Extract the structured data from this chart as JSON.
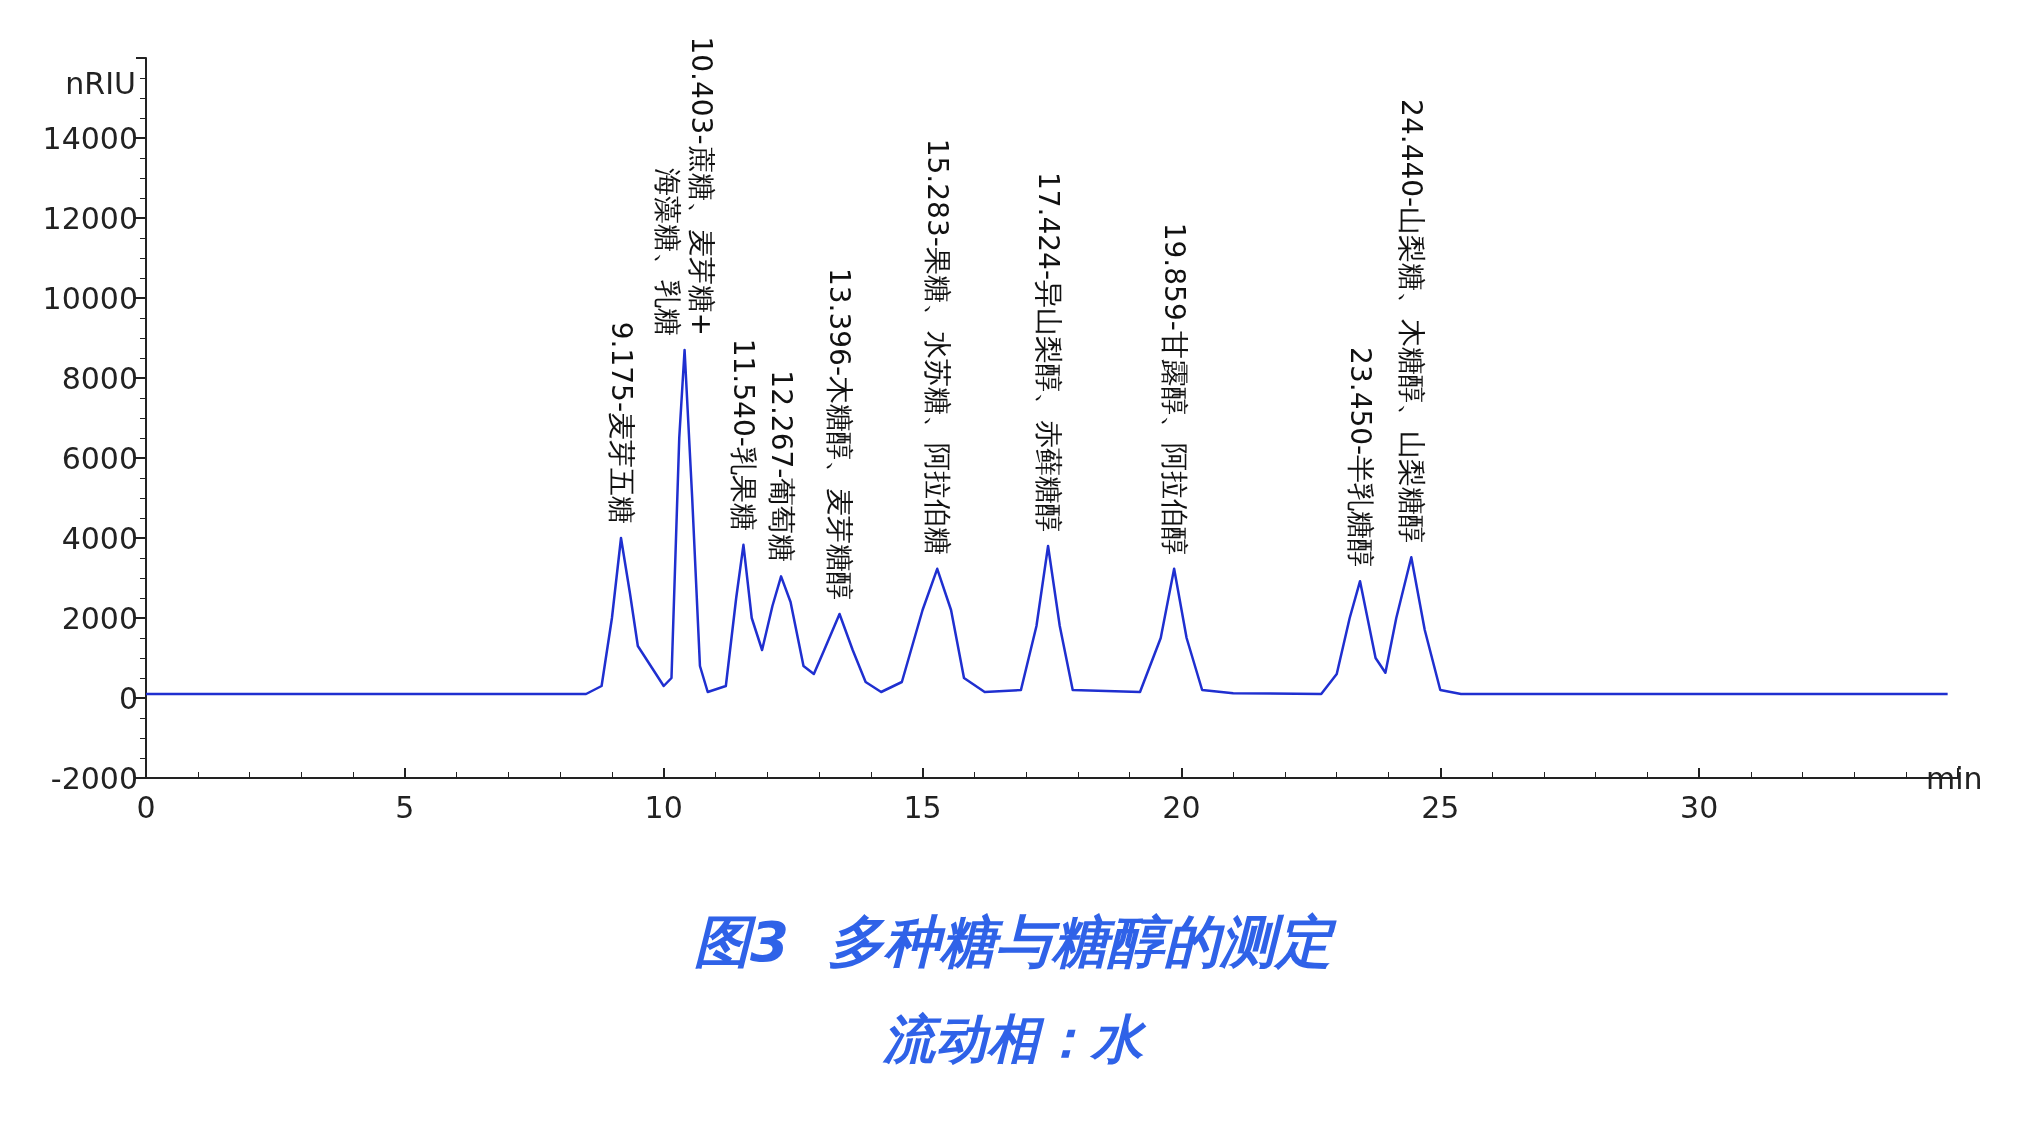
{
  "chart_data": {
    "type": "line",
    "title": "图3  多种糖与糖醇的测定",
    "subtitle": "流动相：水",
    "xlabel": "min",
    "ylabel": "nRIU",
    "x": [
      0,
      8.5,
      8.8,
      9.0,
      9.175,
      9.35,
      9.5,
      9.8,
      10.0,
      10.15,
      10.3,
      10.403,
      10.55,
      10.7,
      10.85,
      11.2,
      11.4,
      11.54,
      11.7,
      11.9,
      12.1,
      12.267,
      12.45,
      12.7,
      12.9,
      13.1,
      13.396,
      13.65,
      13.9,
      14.2,
      14.6,
      15.0,
      15.283,
      15.55,
      15.8,
      16.2,
      16.9,
      17.2,
      17.424,
      17.65,
      17.9,
      19.2,
      19.6,
      19.859,
      20.1,
      20.4,
      21,
      22.7,
      23.0,
      23.25,
      23.45,
      23.75,
      23.94,
      24.15,
      24.44,
      24.7,
      25.0,
      25.4,
      34.8
    ],
    "series": [
      {
        "color": "#1f2fd0",
        "values": [
          100,
          100,
          300,
          2000,
          4000,
          2600,
          1300,
          700,
          300,
          500,
          6500,
          8700,
          5000,
          800,
          150,
          300,
          2500,
          3830,
          2000,
          1200,
          2300,
          3040,
          2400,
          800,
          600,
          1200,
          2100,
          1200,
          400,
          150,
          400,
          2200,
          3230,
          2200,
          500,
          150,
          200,
          1800,
          3800,
          1800,
          200,
          150,
          1500,
          3230,
          1500,
          200,
          120,
          100,
          600,
          2000,
          2920,
          1000,
          630,
          2000,
          3520,
          1700,
          200,
          100,
          100
        ]
      }
    ],
    "xlim": [
      0,
      35
    ],
    "xticks": [
      0,
      5,
      10,
      15,
      20,
      25,
      30,
      {
        "value": 35,
        "label": null
      }
    ],
    "ylim": [
      -2000,
      16000
    ],
    "yticks": [
      -2000,
      0,
      2000,
      4000,
      6000,
      8000,
      10000,
      12000,
      14000,
      {
        "value": 16000,
        "label": null
      }
    ],
    "grid": false,
    "marker": "none",
    "line_style": "solid",
    "annotations": [
      {
        "text": "9.175-麦芽五糖",
        "x": 9.175,
        "y": 4000
      },
      {
        "text": "10.403-蔗糖、麦芽糖+\n海藻糖、乳糖",
        "x": 10.403,
        "y": 8700
      },
      {
        "text": "11.540-乳果糖",
        "x": 11.54,
        "y": 3830
      },
      {
        "text": "12.267-葡萄糖",
        "x": 12.267,
        "y": 3040
      },
      {
        "text": "13.396-木糖醇、麦芽糖醇",
        "x": 13.396,
        "y": 2100
      },
      {
        "text": "15.283-果糖、水苏糖、阿拉伯糖",
        "x": 15.283,
        "y": 3230
      },
      {
        "text": "17.424-异山梨醇、赤藓糖醇",
        "x": 17.424,
        "y": 3800
      },
      {
        "text": "19.859-甘露醇、阿拉伯醇",
        "x": 19.859,
        "y": 3230
      },
      {
        "text": "23.450-半乳糖醇",
        "x": 23.45,
        "y": 2920
      },
      {
        "text": "24.440-山梨糖、木糖醇、山梨糖醇",
        "x": 24.44,
        "y": 3520
      }
    ]
  }
}
